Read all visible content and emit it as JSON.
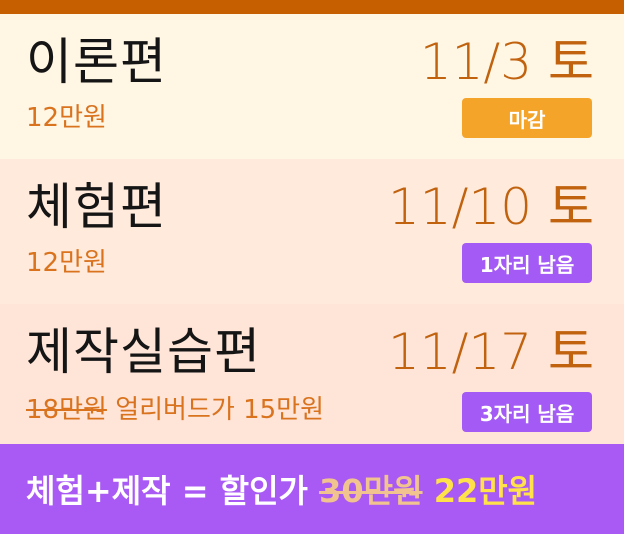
{
  "colors": {
    "top_bar": "#c65f00",
    "title_text": "#151515",
    "date_text": "#c0620e",
    "price_text": "#d9731e",
    "badge_closed": "#f5a42a",
    "badge_seats": "#a45af5",
    "bottom_banner": "#a95af4",
    "banner_old_price": "#f0c38f",
    "banner_new_price": "#ffe24a"
  },
  "sessions": [
    {
      "title": "이론편",
      "date": "11/3 토",
      "price": "12만원",
      "badge": "마감",
      "badge_type": "closed"
    },
    {
      "title": "체험편",
      "date": "11/10 토",
      "price": "12만원",
      "badge": "1자리 남음",
      "badge_type": "seats"
    },
    {
      "title": "제작실습편",
      "date": "11/17 토",
      "price_original": "18만원",
      "price_note": "얼리버드가 15만원",
      "badge": "3자리 남음",
      "badge_type": "seats"
    }
  ],
  "banner": {
    "label": "체험+제작 = 할인가",
    "old_price": "30만원",
    "new_price": "22만원"
  }
}
